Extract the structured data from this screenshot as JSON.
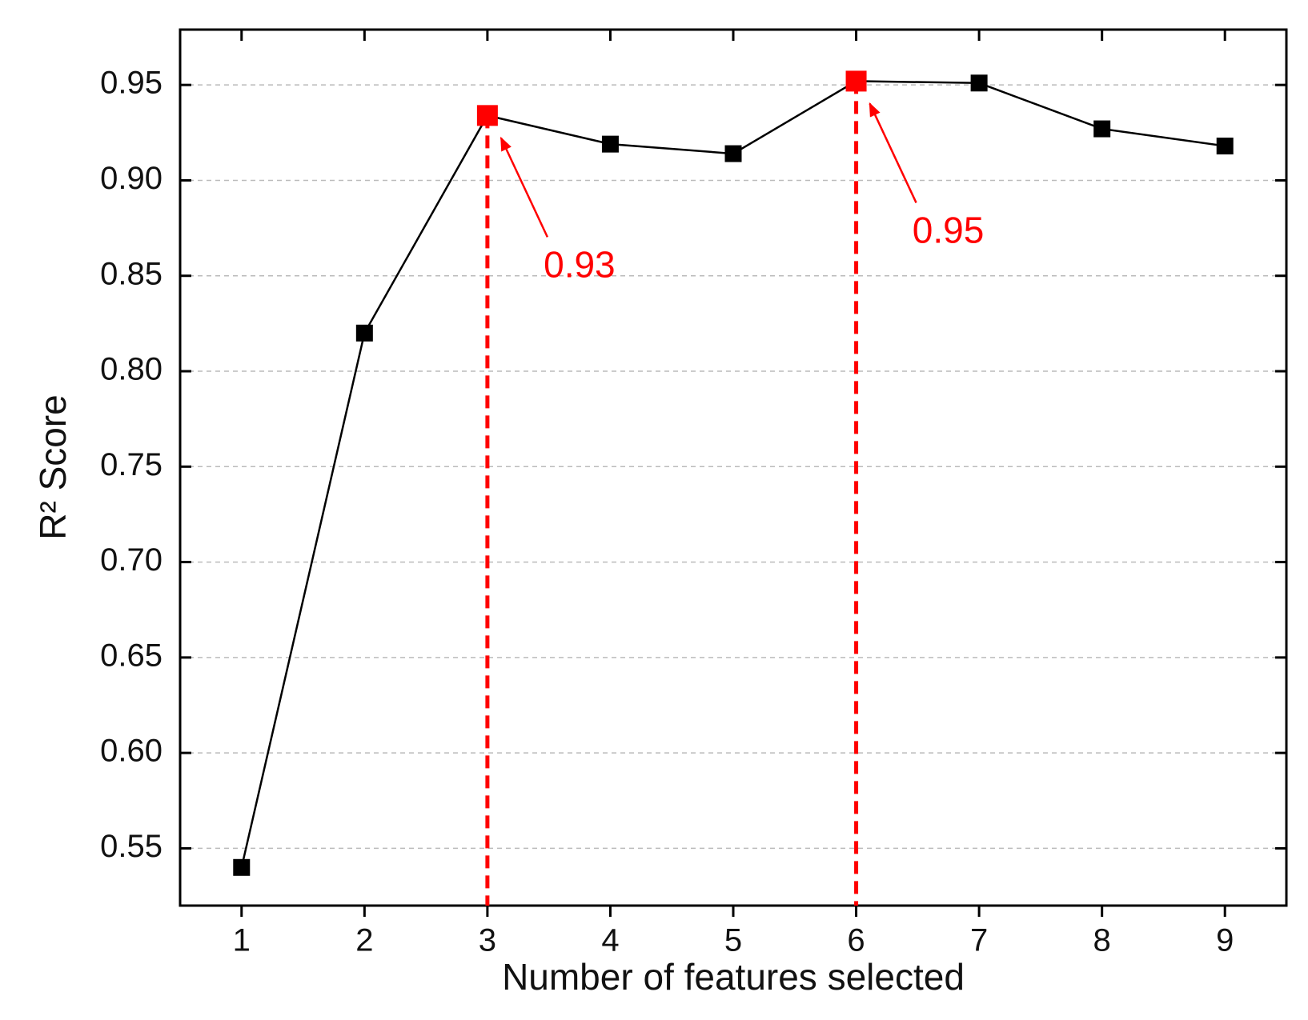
{
  "chart_data": {
    "type": "line",
    "x_label": "Number of features selected",
    "y_label": "R² Score",
    "x": [
      1,
      2,
      3,
      4,
      5,
      6,
      7,
      8,
      9
    ],
    "series": [
      {
        "color": "#000000",
        "values": [
          0.54,
          0.82,
          0.934,
          0.919,
          0.914,
          0.952,
          0.951,
          0.927,
          0.918
        ],
        "value_labels": [
          null,
          null,
          "0.93",
          null,
          null,
          "0.95",
          null,
          null,
          null
        ]
      }
    ],
    "highlight_color": "#ff0000",
    "xlim": [
      0.5,
      9.5
    ],
    "ylim": [
      0.52,
      0.979
    ],
    "xticks": [
      1,
      2,
      3,
      4,
      5,
      6,
      7,
      8,
      9
    ],
    "yticks": [
      0.55,
      {
        "value": 0.6,
        "label": "0.60"
      },
      0.65,
      {
        "value": 0.7,
        "label": "0.70"
      },
      0.75,
      {
        "value": 0.8,
        "label": "0.80"
      },
      0.85,
      {
        "value": 0.9,
        "label": "0.90"
      },
      0.95
    ],
    "grid": true
  }
}
